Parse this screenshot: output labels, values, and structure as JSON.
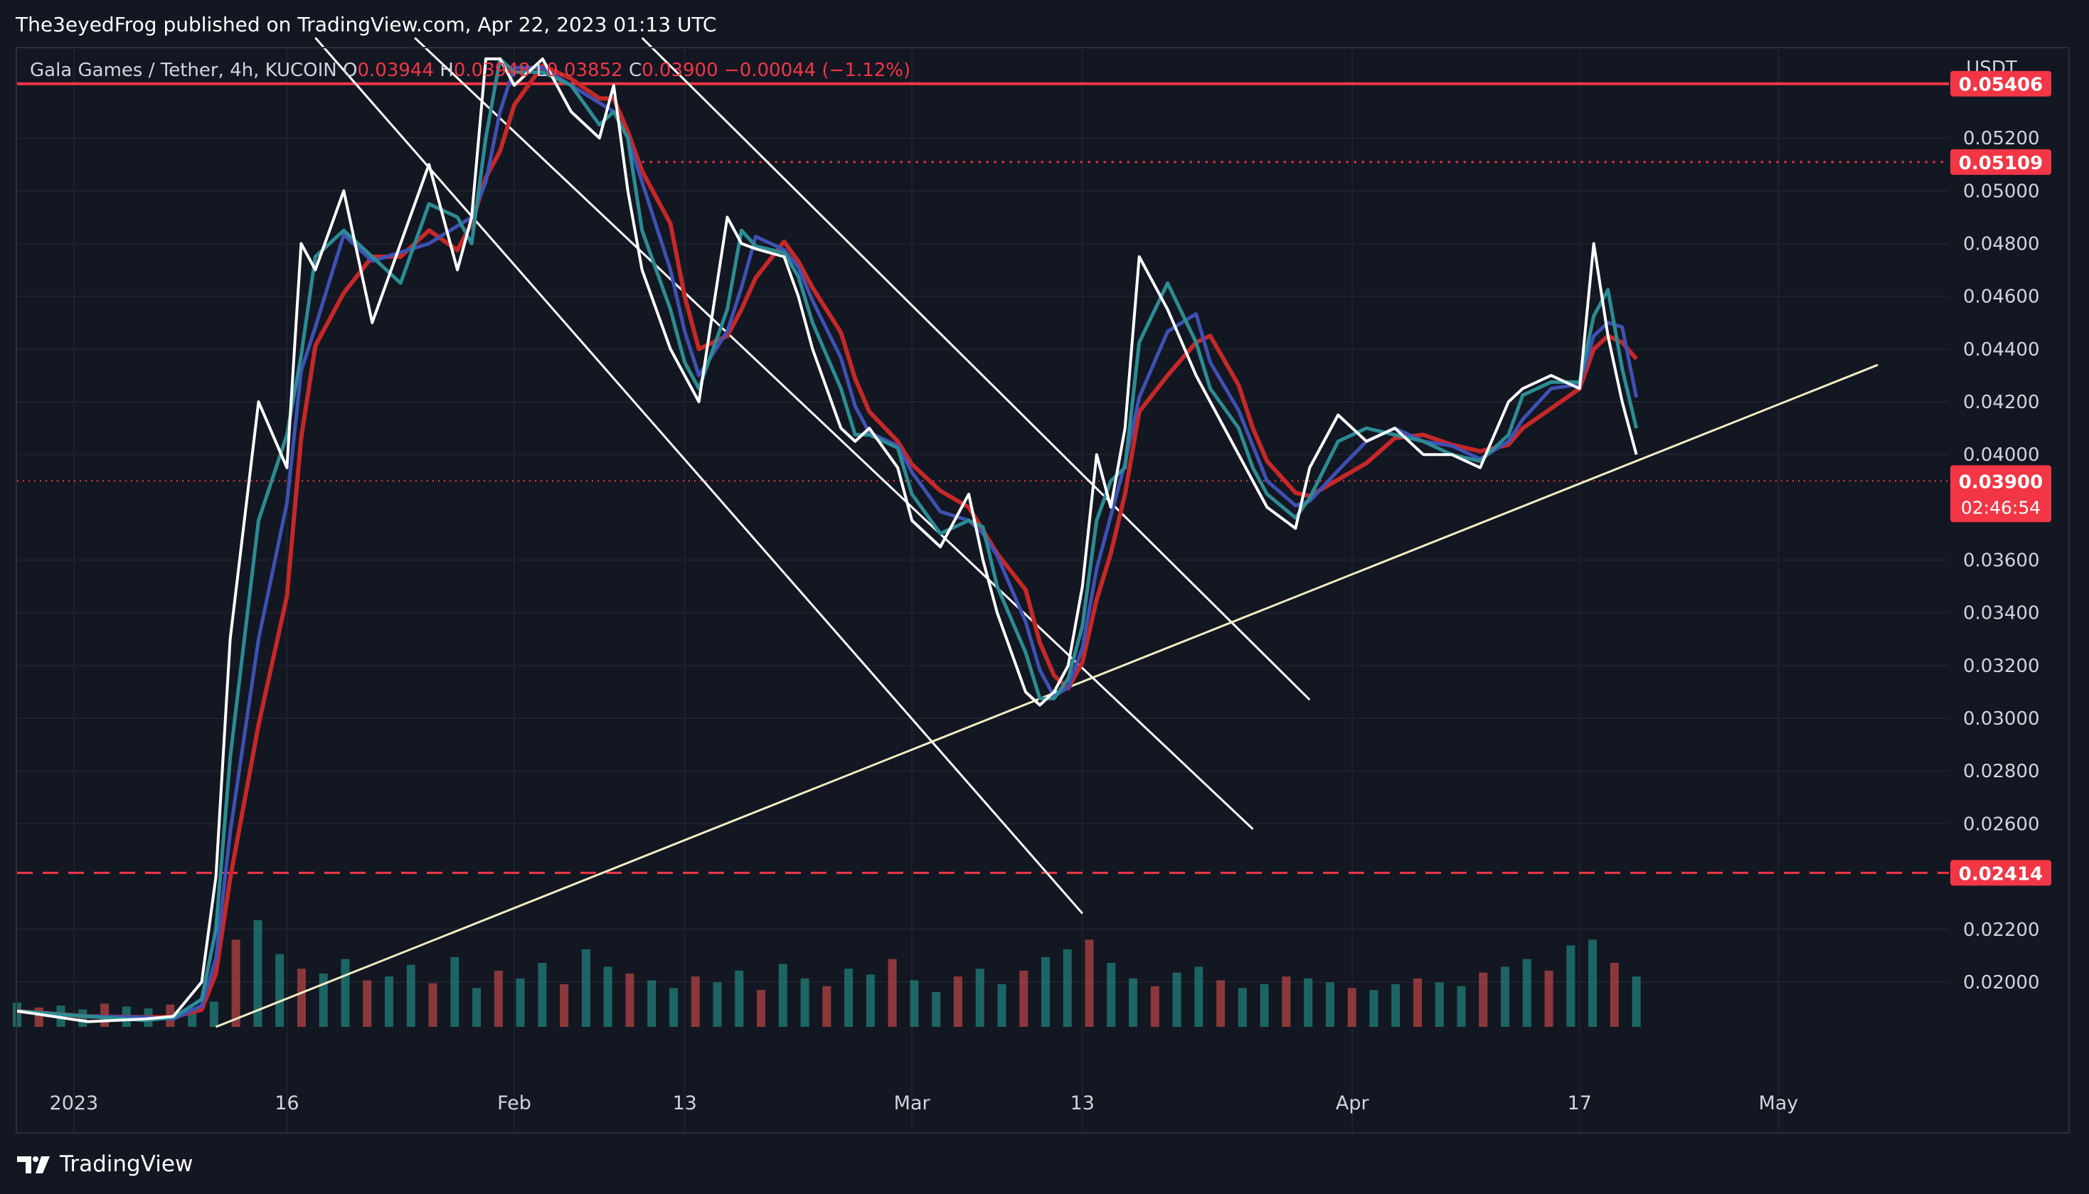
{
  "header": {
    "publisher": "The3eyedFrog published on TradingView.com, Apr 22, 2023 01:13 UTC"
  },
  "legend": {
    "symbol": "Gala Games / Tether, 4h, KUCOIN",
    "o_label": "O",
    "o_value": "0.03944",
    "h_label": "H",
    "h_value": "0.03948",
    "l_label": "L",
    "l_value": "0.03852",
    "c_label": "C",
    "c_value": "0.03900",
    "change": "−0.00044 (−1.12%)"
  },
  "footer": {
    "brand": "TradingView"
  },
  "colors": {
    "background": "#131722",
    "grid": "#1e222d",
    "bull": "#26a69a",
    "bear": "#ef5350",
    "level_red": "#f23645",
    "ma_white": "#ffffff",
    "ma_teal": "#2c8c93",
    "ma_blue": "#3f51b5",
    "ma_red": "#c62828",
    "channel": "#ffffff",
    "trendline": "#f2eec5"
  },
  "chart_data": {
    "type": "line",
    "price_unit": "USDT",
    "x_ticks": [
      "2023",
      "16",
      "Feb",
      "13",
      "Mar",
      "13",
      "Apr",
      "17",
      "May"
    ],
    "y_ticks": [
      "0.05200",
      "0.05000",
      "0.04800",
      "0.04600",
      "0.04400",
      "0.04200",
      "0.04000",
      "0.03600",
      "0.03400",
      "0.03200",
      "0.03000",
      "0.02800",
      "0.02600",
      "0.02200",
      "0.02000"
    ],
    "ylim": [
      0.0183,
      0.0554
    ],
    "xlim": [
      "2022-12-28",
      "2023-05-13"
    ],
    "levels": [
      {
        "label": "0.05406",
        "price": 0.05406,
        "style": "solid"
      },
      {
        "label": "0.05109",
        "price": 0.05109,
        "style": "dotted",
        "from": "2023-02-10"
      },
      {
        "label": "0.02414",
        "price": 0.02414,
        "style": "dashed"
      }
    ],
    "current_price": {
      "label": "0.03900",
      "price": 0.039,
      "countdown": "02:46:54"
    },
    "channel_lines": [
      {
        "p1": [
          "2023-01-18",
          0.0558
        ],
        "p2": [
          "2023-03-13",
          0.0226
        ]
      },
      {
        "p1": [
          "2023-01-25",
          0.0558
        ],
        "p2": [
          "2023-03-25",
          0.0258
        ]
      },
      {
        "p1": [
          "2023-02-10",
          0.0558
        ],
        "p2": [
          "2023-03-29",
          0.0307
        ]
      }
    ],
    "trend_line": {
      "p1": [
        "2023-01-11",
        0.0183
      ],
      "p2": [
        "2023-05-08",
        0.0434
      ]
    },
    "series": [
      {
        "x": [
          "2022-12-28",
          "2023-01-02",
          "2023-01-06",
          "2023-01-08",
          "2023-01-10",
          "2023-01-11",
          "2023-01-12",
          "2023-01-14",
          "2023-01-16",
          "2023-01-17",
          "2023-01-18",
          "2023-01-20",
          "2023-01-22",
          "2023-01-24",
          "2023-01-26",
          "2023-01-28",
          "2023-01-29",
          "2023-01-30",
          "2023-01-31",
          "2023-02-01",
          "2023-02-03",
          "2023-02-05",
          "2023-02-07",
          "2023-02-08",
          "2023-02-09",
          "2023-02-10",
          "2023-02-12",
          "2023-02-13",
          "2023-02-14",
          "2023-02-16",
          "2023-02-17",
          "2023-02-18",
          "2023-02-20",
          "2023-02-21",
          "2023-02-22",
          "2023-02-24",
          "2023-02-25",
          "2023-02-26",
          "2023-02-28",
          "2023-03-01",
          "2023-03-03",
          "2023-03-05",
          "2023-03-06",
          "2023-03-07",
          "2023-03-09",
          "2023-03-10",
          "2023-03-11",
          "2023-03-12",
          "2023-03-13",
          "2023-03-14",
          "2023-03-15",
          "2023-03-16",
          "2023-03-17",
          "2023-03-19",
          "2023-03-21",
          "2023-03-22",
          "2023-03-24",
          "2023-03-25",
          "2023-03-26",
          "2023-03-28",
          "2023-03-29",
          "2023-03-31",
          "2023-04-02",
          "2023-04-04",
          "2023-04-06",
          "2023-04-08",
          "2023-04-10",
          "2023-04-12",
          "2023-04-13",
          "2023-04-15",
          "2023-04-17",
          "2023-04-18",
          "2023-04-19",
          "2023-04-20",
          "2023-04-21"
        ],
        "values": [
          0.0189,
          0.0185,
          0.0186,
          0.0187,
          0.02,
          0.024,
          0.033,
          0.042,
          0.0395,
          0.048,
          0.047,
          0.05,
          0.045,
          0.048,
          0.051,
          0.047,
          0.049,
          0.055,
          0.055,
          0.054,
          0.055,
          0.053,
          0.052,
          0.054,
          0.05,
          0.047,
          0.044,
          0.043,
          0.042,
          0.049,
          0.048,
          0.0478,
          0.0475,
          0.046,
          0.044,
          0.041,
          0.0405,
          0.041,
          0.0395,
          0.0375,
          0.0365,
          0.0385,
          0.036,
          0.034,
          0.031,
          0.0305,
          0.031,
          0.032,
          0.035,
          0.04,
          0.038,
          0.041,
          0.0475,
          0.0455,
          0.043,
          0.042,
          0.04,
          0.039,
          0.038,
          0.0372,
          0.0395,
          0.0415,
          0.0405,
          0.041,
          0.04,
          0.04,
          0.0395,
          0.042,
          0.0425,
          0.043,
          0.0425,
          0.048,
          0.0445,
          0.042,
          0.04
        ]
      }
    ],
    "volume": [
      25,
      20,
      22,
      18,
      24,
      21,
      19,
      23,
      20,
      26,
      90,
      110,
      75,
      60,
      55,
      70,
      48,
      52,
      64,
      45,
      72,
      40,
      58,
      50,
      66,
      44,
      80,
      62,
      55,
      48,
      40,
      52,
      46,
      58,
      38,
      65,
      50,
      42,
      60,
      54,
      70,
      48,
      36,
      52,
      60,
      44,
      58,
      72,
      80,
      90,
      66,
      50,
      42,
      56,
      62,
      48,
      40,
      44,
      52,
      50,
      46,
      40,
      38,
      44,
      50,
      46,
      42,
      56,
      62,
      70,
      58,
      84,
      90,
      66,
      52
    ]
  }
}
